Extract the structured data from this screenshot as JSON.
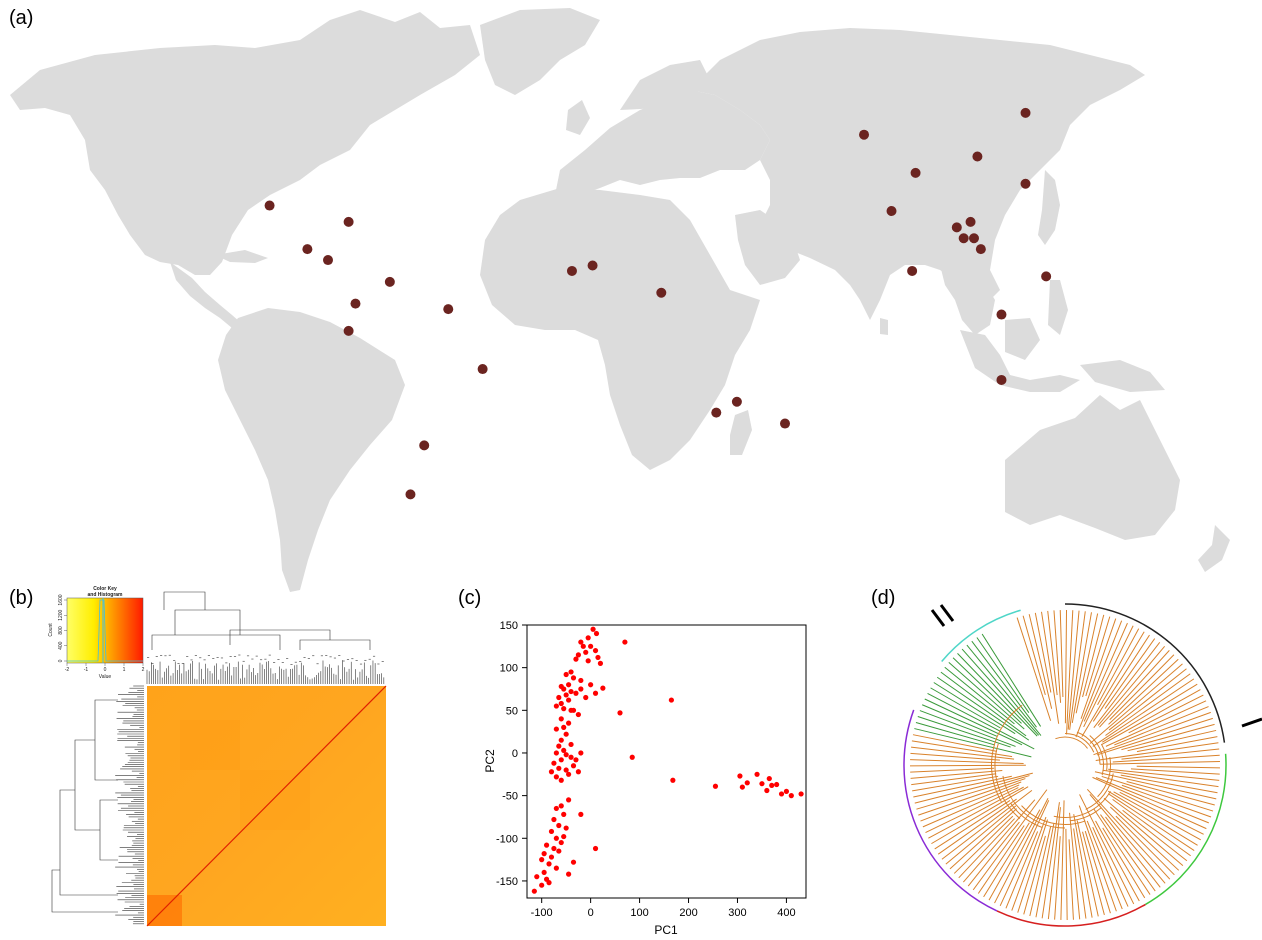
{
  "panels": {
    "a": {
      "label": "(a)"
    },
    "b": {
      "label": "(b)"
    },
    "c": {
      "label": "(c)"
    },
    "d": {
      "label": "(d)"
    }
  },
  "colors": {
    "land": "#dcdcdc",
    "site_marker": "#6b2420",
    "scatter_point": "#ff0000",
    "tree_main": "#d9822b",
    "tree_group": "#3a9a3a",
    "arc_cyan": "#4fd6c8",
    "arc_black": "#222222",
    "arc_green": "#3ec83e",
    "arc_red": "#d62020",
    "arc_purple": "#8a2bd6"
  },
  "map": {
    "sites": [
      {
        "lon": -103,
        "lat": 21
      },
      {
        "lon": -80,
        "lat": 18
      },
      {
        "lon": -92,
        "lat": 13
      },
      {
        "lon": -86,
        "lat": 11
      },
      {
        "lon": -68,
        "lat": 7
      },
      {
        "lon": -78,
        "lat": 3
      },
      {
        "lon": -80,
        "lat": -2
      },
      {
        "lon": -51,
        "lat": 2
      },
      {
        "lon": -41,
        "lat": -9
      },
      {
        "lon": -58,
        "lat": -23
      },
      {
        "lon": -62,
        "lat": -32
      },
      {
        "lon": -15,
        "lat": 9
      },
      {
        "lon": -9,
        "lat": 10
      },
      {
        "lon": 11,
        "lat": 5
      },
      {
        "lon": 33,
        "lat": -15
      },
      {
        "lon": 27,
        "lat": -17
      },
      {
        "lon": 47,
        "lat": -19
      },
      {
        "lon": 70,
        "lat": 34
      },
      {
        "lon": 85,
        "lat": 27
      },
      {
        "lon": 78,
        "lat": 20
      },
      {
        "lon": 84,
        "lat": 9
      },
      {
        "lon": 97,
        "lat": 17
      },
      {
        "lon": 101,
        "lat": 18
      },
      {
        "lon": 99,
        "lat": 15
      },
      {
        "lon": 102,
        "lat": 15
      },
      {
        "lon": 104,
        "lat": 13
      },
      {
        "lon": 103,
        "lat": 30
      },
      {
        "lon": 117,
        "lat": 38
      },
      {
        "lon": 117,
        "lat": 25
      },
      {
        "lon": 123,
        "lat": 8
      },
      {
        "lon": 110,
        "lat": 1
      },
      {
        "lon": 110,
        "lat": -11
      }
    ]
  },
  "heatmap": {
    "color_key": {
      "title_line1": "Color Key",
      "title_line2": "and Histogram",
      "x_label": "Value",
      "y_label": "Count",
      "x_ticks": [
        "-2",
        "-1",
        "0",
        "1",
        "2"
      ],
      "y_ticks": [
        "0",
        "400",
        "800",
        "1200",
        "1600"
      ]
    }
  },
  "chart_data": {
    "type": "scatter",
    "title": "",
    "xlabel": "PC1",
    "ylabel": "PC2",
    "xlim": [
      -130,
      440
    ],
    "ylim": [
      -170,
      150
    ],
    "xticks": [
      -100,
      0,
      100,
      200,
      300,
      400
    ],
    "yticks": [
      -150,
      -100,
      -50,
      0,
      50,
      100,
      150
    ],
    "grid": false,
    "points": [
      [
        5,
        145
      ],
      [
        12,
        140
      ],
      [
        -5,
        135
      ],
      [
        -20,
        130
      ],
      [
        -15,
        125
      ],
      [
        0,
        125
      ],
      [
        10,
        120
      ],
      [
        -25,
        115
      ],
      [
        -10,
        118
      ],
      [
        15,
        112
      ],
      [
        -30,
        110
      ],
      [
        -5,
        108
      ],
      [
        20,
        105
      ],
      [
        -40,
        95
      ],
      [
        -50,
        92
      ],
      [
        -35,
        88
      ],
      [
        -20,
        85
      ],
      [
        -45,
        80
      ],
      [
        -60,
        78
      ],
      [
        -55,
        75
      ],
      [
        -40,
        72
      ],
      [
        -30,
        70
      ],
      [
        -50,
        68
      ],
      [
        -65,
        65
      ],
      [
        -45,
        62
      ],
      [
        -60,
        58
      ],
      [
        -70,
        55
      ],
      [
        -55,
        52
      ],
      [
        -40,
        50
      ],
      [
        -20,
        75
      ],
      [
        0,
        80
      ],
      [
        -10,
        65
      ],
      [
        10,
        70
      ],
      [
        25,
        76
      ],
      [
        70,
        130
      ],
      [
        -35,
        50
      ],
      [
        -25,
        45
      ],
      [
        -60,
        40
      ],
      [
        -45,
        35
      ],
      [
        -55,
        30
      ],
      [
        -70,
        28
      ],
      [
        -50,
        22
      ],
      [
        -60,
        15
      ],
      [
        -40,
        10
      ],
      [
        -65,
        8
      ],
      [
        -55,
        3
      ],
      [
        -70,
        0
      ],
      [
        -50,
        -2
      ],
      [
        -40,
        -5
      ],
      [
        -60,
        -8
      ],
      [
        -75,
        -12
      ],
      [
        -65,
        -18
      ],
      [
        -50,
        -20
      ],
      [
        -80,
        -22
      ],
      [
        -70,
        -28
      ],
      [
        -60,
        -32
      ],
      [
        -30,
        -8
      ],
      [
        -20,
        0
      ],
      [
        -35,
        -15
      ],
      [
        -25,
        -22
      ],
      [
        -45,
        -25
      ],
      [
        60,
        47
      ],
      [
        85,
        -5
      ],
      [
        165,
        62
      ],
      [
        168,
        -32
      ],
      [
        255,
        -39
      ],
      [
        305,
        -27
      ],
      [
        310,
        -40
      ],
      [
        320,
        -35
      ],
      [
        340,
        -25
      ],
      [
        350,
        -36
      ],
      [
        360,
        -44
      ],
      [
        365,
        -30
      ],
      [
        370,
        -38
      ],
      [
        380,
        -37
      ],
      [
        390,
        -48
      ],
      [
        400,
        -45
      ],
      [
        410,
        -50
      ],
      [
        430,
        -48
      ],
      [
        -45,
        -55
      ],
      [
        -60,
        -62
      ],
      [
        -70,
        -65
      ],
      [
        -55,
        -72
      ],
      [
        -75,
        -78
      ],
      [
        -65,
        -85
      ],
      [
        -50,
        -88
      ],
      [
        -80,
        -92
      ],
      [
        -70,
        -100
      ],
      [
        -60,
        -105
      ],
      [
        -90,
        -108
      ],
      [
        -75,
        -112
      ],
      [
        -95,
        -118
      ],
      [
        -80,
        -122
      ],
      [
        -100,
        -125
      ],
      [
        -85,
        -130
      ],
      [
        -70,
        -135
      ],
      [
        -95,
        -140
      ],
      [
        -110,
        -145
      ],
      [
        -90,
        -148
      ],
      [
        -100,
        -155
      ],
      [
        -85,
        -152
      ],
      [
        -115,
        -162
      ],
      [
        -20,
        -72
      ],
      [
        10,
        -112
      ],
      [
        -55,
        -98
      ],
      [
        -65,
        -115
      ],
      [
        -45,
        -142
      ],
      [
        -35,
        -128
      ]
    ]
  }
}
